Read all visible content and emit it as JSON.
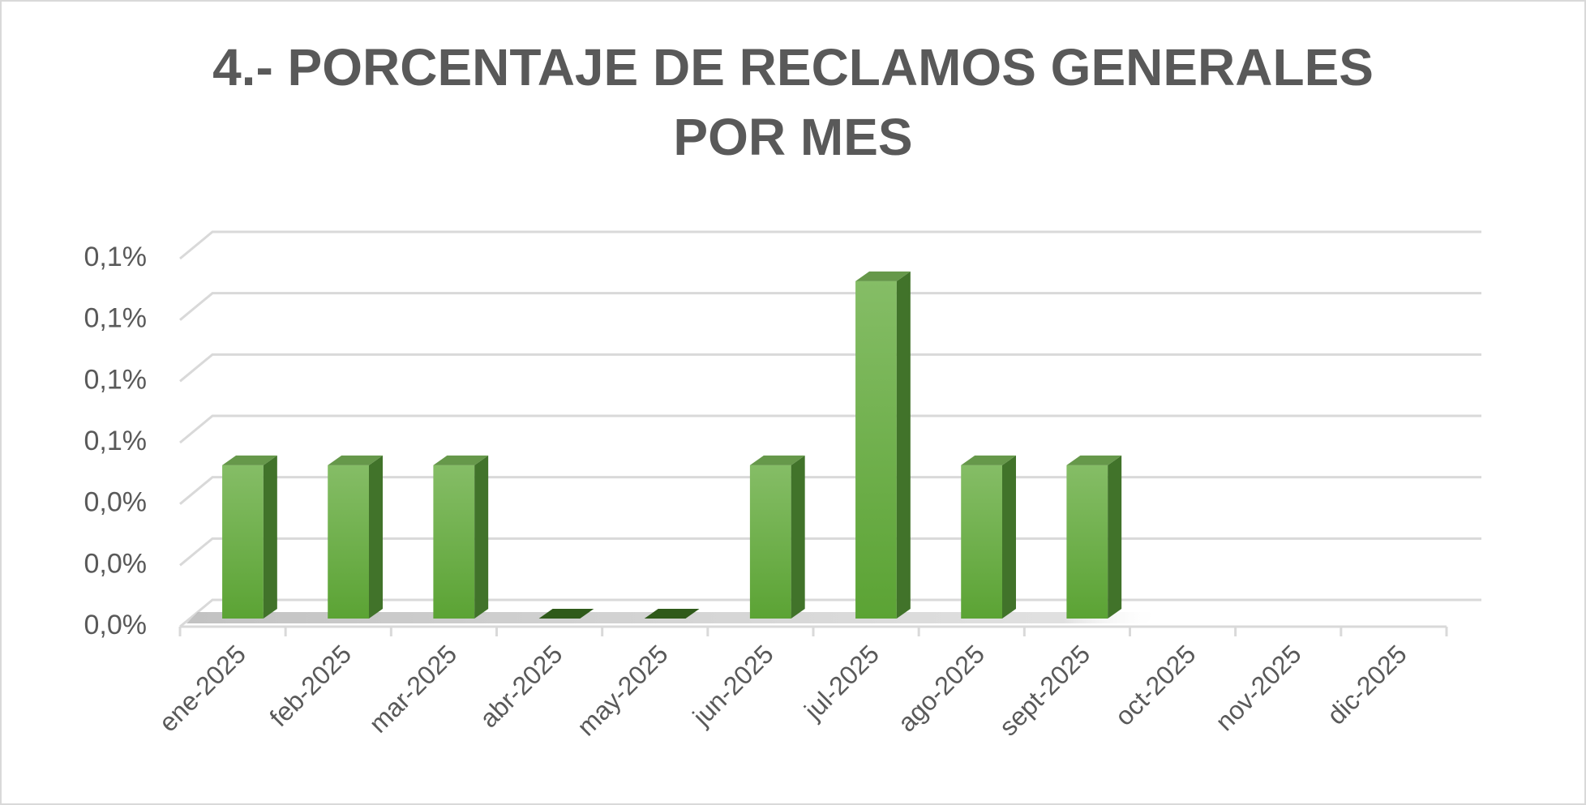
{
  "chart_data": {
    "type": "bar3d",
    "title": "4.- PORCENTAJE DE RECLAMOS GENERALES POR MES",
    "categories": [
      "ene-2025",
      "feb-2025",
      "mar-2025",
      "abr-2025",
      "may-2025",
      "jun-2025",
      "jul-2025",
      "ago-2025",
      "sept-2025",
      "oct-2025",
      "nov-2025",
      "dic-2025"
    ],
    "values": [
      0.05,
      0.05,
      0.05,
      0,
      0,
      0.05,
      0.11,
      0.05,
      0.05,
      null,
      null,
      null
    ],
    "color": "#70ad47",
    "ylim": [
      0,
      0.12
    ],
    "yticks": [
      {
        "value": 0,
        "label": "0,0%"
      },
      {
        "value": 0.02,
        "label": "0,0%"
      },
      {
        "value": 0.04,
        "label": "0,0%"
      },
      {
        "value": 0.06,
        "label": "0,1%"
      },
      {
        "value": 0.08,
        "label": "0,1%"
      },
      {
        "value": 0.1,
        "label": "0,1%"
      },
      {
        "value": 0.12,
        "label": "0,1%"
      }
    ],
    "grid": true
  }
}
